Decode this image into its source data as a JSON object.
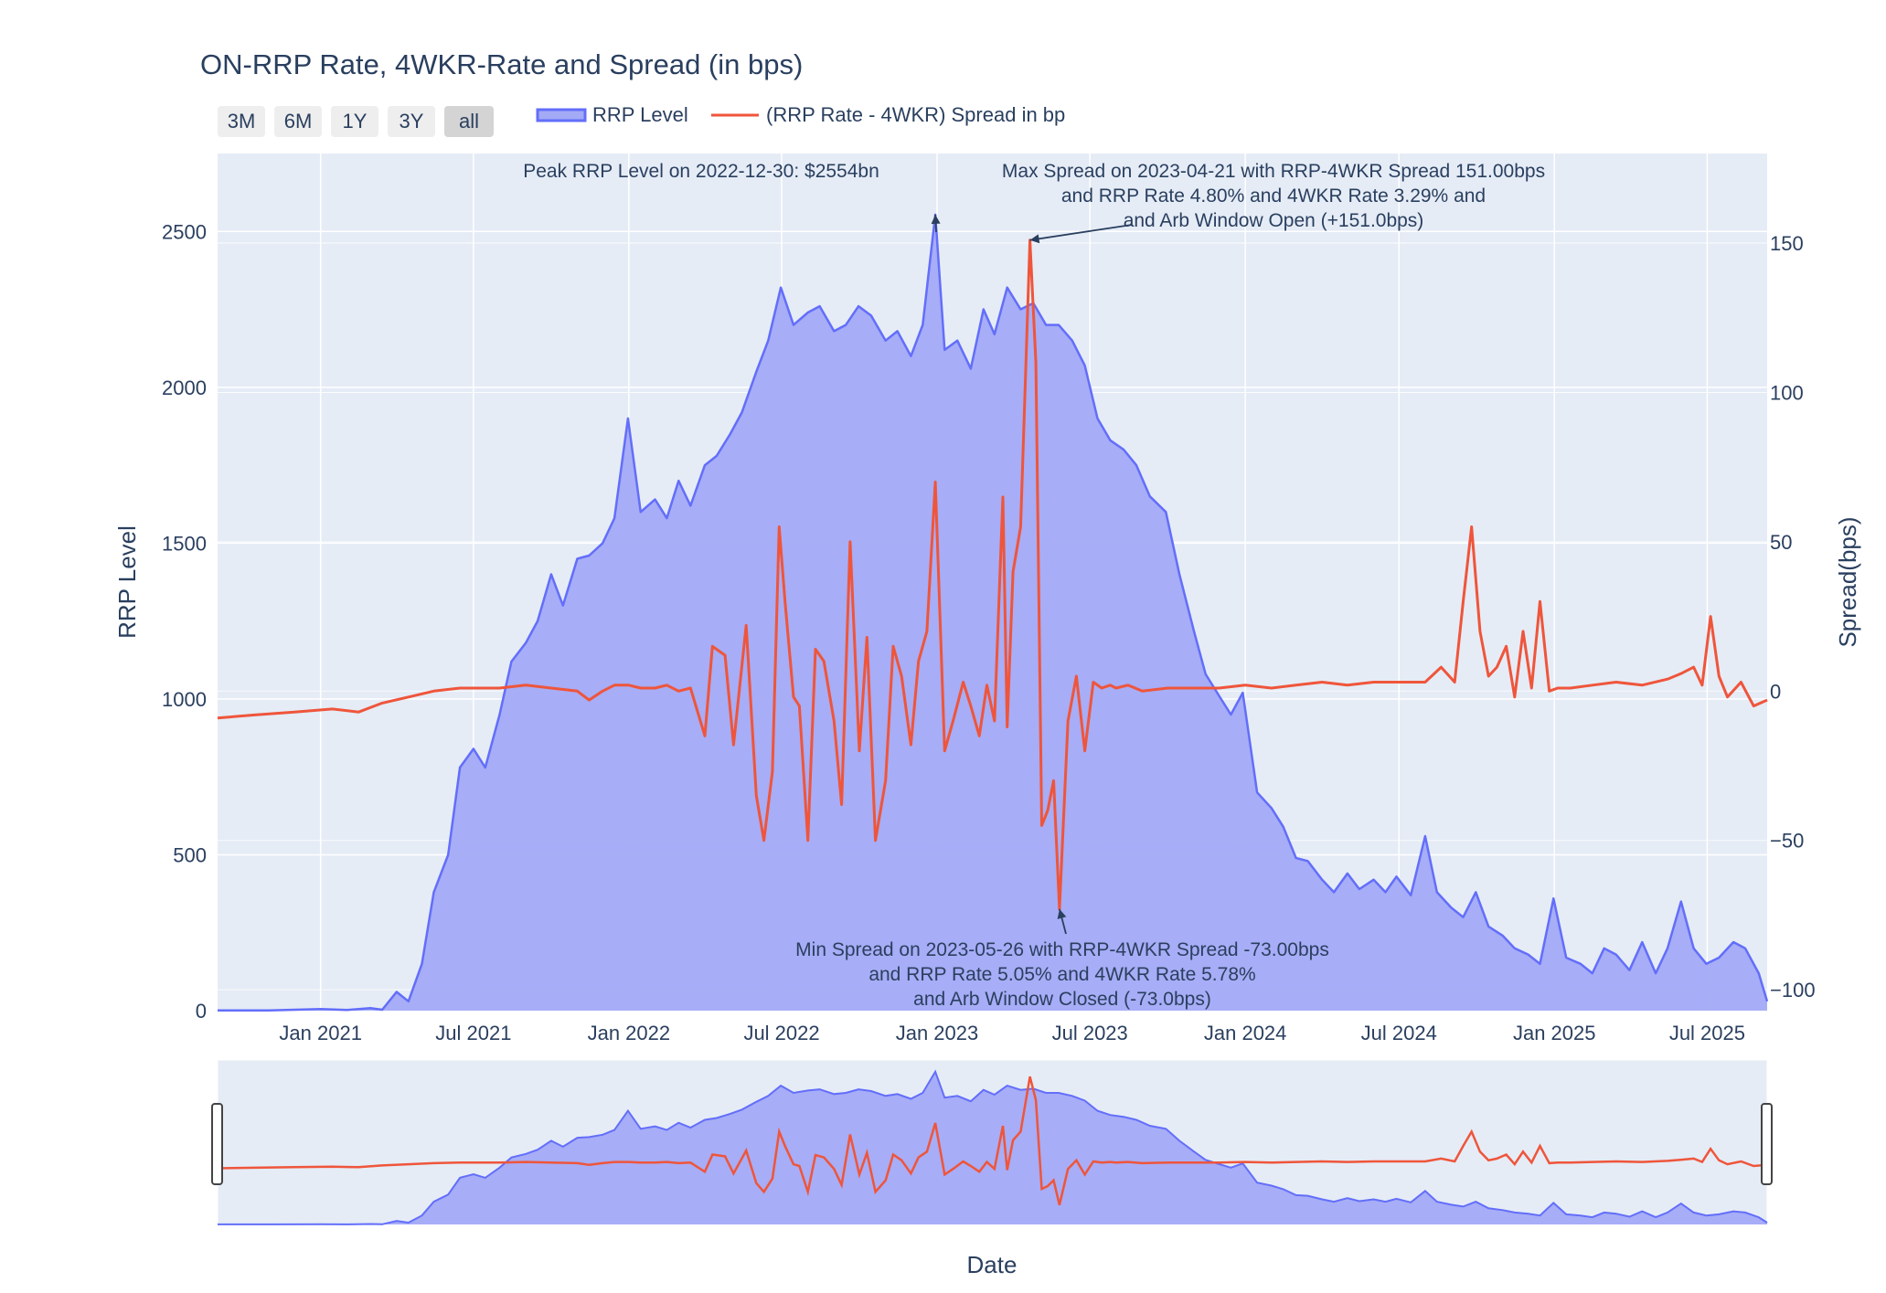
{
  "chart_data": {
    "type": "area+line",
    "title": "ON-RRP Rate, 4WKR-Rate and Spread (in bps)",
    "xlabel": "Date",
    "ylabel_left": "RRP Level",
    "ylabel_right": "Spread(bps)",
    "x_range": [
      "2020-09-01",
      "2025-09-10"
    ],
    "ylim_left": [
      0,
      2750
    ],
    "ylim_right": [
      -107,
      180
    ],
    "x_ticks": [
      "Jan 2021",
      "Jul 2021",
      "Jan 2022",
      "Jul 2022",
      "Jan 2023",
      "Jul 2023",
      "Jan 2024",
      "Jul 2024",
      "Jan 2025",
      "Jul 2025"
    ],
    "x_tick_dates": [
      "2021-01-01",
      "2021-07-01",
      "2022-01-01",
      "2022-07-01",
      "2023-01-01",
      "2023-07-01",
      "2024-01-01",
      "2024-07-01",
      "2025-01-01",
      "2025-07-01"
    ],
    "y_ticks_left": [
      0,
      500,
      1000,
      1500,
      2000,
      2500
    ],
    "y_ticks_right": [
      -100,
      -50,
      0,
      50,
      100,
      150
    ],
    "y_ticks_right_labels": [
      "−100",
      "−50",
      "0",
      "50",
      "100",
      "150"
    ],
    "grid": true,
    "legend_position": "top-left",
    "range_selector": [
      "3M",
      "6M",
      "1Y",
      "3Y",
      "all"
    ],
    "range_selector_active": "all",
    "range_slider": true,
    "colors": {
      "rrp_line": "#636efa",
      "rrp_fill": "#a3aaf6",
      "spread_line": "#ef553b",
      "plot_bg": "#e5ecf6",
      "grid": "#ffffff",
      "text": "#2a3f5f"
    },
    "series": [
      {
        "name": "RRP Level",
        "type": "area",
        "axis": "left",
        "x": [
          "2020-09-01",
          "2020-11-01",
          "2021-01-01",
          "2021-02-01",
          "2021-03-01",
          "2021-03-15",
          "2021-04-01",
          "2021-04-15",
          "2021-05-01",
          "2021-05-15",
          "2021-06-01",
          "2021-06-15",
          "2021-07-01",
          "2021-07-15",
          "2021-08-01",
          "2021-08-15",
          "2021-09-01",
          "2021-09-15",
          "2021-10-01",
          "2021-10-15",
          "2021-11-01",
          "2021-11-15",
          "2021-12-01",
          "2021-12-15",
          "2021-12-31",
          "2022-01-15",
          "2022-02-01",
          "2022-02-15",
          "2022-03-01",
          "2022-03-15",
          "2022-04-01",
          "2022-04-15",
          "2022-05-01",
          "2022-05-15",
          "2022-06-01",
          "2022-06-15",
          "2022-06-30",
          "2022-07-15",
          "2022-08-01",
          "2022-08-15",
          "2022-09-01",
          "2022-09-15",
          "2022-09-30",
          "2022-10-15",
          "2022-11-01",
          "2022-11-15",
          "2022-12-01",
          "2022-12-15",
          "2022-12-30",
          "2023-01-10",
          "2023-01-25",
          "2023-02-10",
          "2023-02-25",
          "2023-03-10",
          "2023-03-25",
          "2023-04-10",
          "2023-04-25",
          "2023-05-10",
          "2023-05-25",
          "2023-06-10",
          "2023-06-25",
          "2023-07-10",
          "2023-07-25",
          "2023-08-10",
          "2023-08-25",
          "2023-09-10",
          "2023-09-29",
          "2023-10-15",
          "2023-11-01",
          "2023-11-15",
          "2023-12-01",
          "2023-12-15",
          "2023-12-29",
          "2024-01-15",
          "2024-02-01",
          "2024-02-15",
          "2024-03-01",
          "2024-03-15",
          "2024-04-01",
          "2024-04-15",
          "2024-05-01",
          "2024-05-15",
          "2024-06-01",
          "2024-06-15",
          "2024-06-28",
          "2024-07-15",
          "2024-08-01",
          "2024-08-15",
          "2024-09-01",
          "2024-09-15",
          "2024-09-30",
          "2024-10-15",
          "2024-11-01",
          "2024-11-15",
          "2024-12-01",
          "2024-12-15",
          "2024-12-31",
          "2025-01-15",
          "2025-02-01",
          "2025-02-15",
          "2025-03-01",
          "2025-03-15",
          "2025-03-31",
          "2025-04-15",
          "2025-05-01",
          "2025-05-15",
          "2025-05-31",
          "2025-06-15",
          "2025-06-30",
          "2025-07-15",
          "2025-08-01",
          "2025-08-15",
          "2025-08-31",
          "2025-09-10"
        ],
        "values": [
          1,
          1,
          5,
          2,
          8,
          3,
          60,
          30,
          150,
          380,
          500,
          780,
          840,
          780,
          950,
          1120,
          1180,
          1250,
          1400,
          1300,
          1450,
          1460,
          1500,
          1580,
          1900,
          1600,
          1640,
          1580,
          1700,
          1620,
          1750,
          1780,
          1850,
          1920,
          2050,
          2150,
          2320,
          2200,
          2240,
          2260,
          2180,
          2200,
          2260,
          2230,
          2150,
          2180,
          2100,
          2200,
          2554,
          2120,
          2150,
          2060,
          2250,
          2170,
          2320,
          2250,
          2270,
          2200,
          2200,
          2150,
          2070,
          1900,
          1830,
          1800,
          1750,
          1650,
          1600,
          1400,
          1220,
          1080,
          1010,
          950,
          1020,
          700,
          650,
          590,
          490,
          480,
          420,
          380,
          440,
          390,
          420,
          380,
          430,
          370,
          560,
          380,
          330,
          300,
          380,
          270,
          240,
          200,
          180,
          150,
          360,
          170,
          150,
          120,
          200,
          180,
          130,
          220,
          120,
          200,
          350,
          200,
          150,
          170,
          220,
          200,
          120,
          30
        ]
      },
      {
        "name": "(RRP Rate - 4WKR) Spread in bp",
        "type": "line",
        "axis": "right",
        "x": [
          "2020-09-01",
          "2020-10-15",
          "2020-12-01",
          "2021-01-15",
          "2021-02-15",
          "2021-03-15",
          "2021-04-15",
          "2021-05-15",
          "2021-06-15",
          "2021-07-01",
          "2021-08-01",
          "2021-09-01",
          "2021-10-01",
          "2021-11-01",
          "2021-11-15",
          "2021-12-01",
          "2021-12-15",
          "2022-01-01",
          "2022-01-15",
          "2022-02-01",
          "2022-02-15",
          "2022-03-01",
          "2022-03-15",
          "2022-04-01",
          "2022-04-10",
          "2022-04-25",
          "2022-05-05",
          "2022-05-20",
          "2022-06-01",
          "2022-06-10",
          "2022-06-20",
          "2022-06-28",
          "2022-07-05",
          "2022-07-15",
          "2022-07-22",
          "2022-08-01",
          "2022-08-10",
          "2022-08-20",
          "2022-09-01",
          "2022-09-10",
          "2022-09-20",
          "2022-10-01",
          "2022-10-10",
          "2022-10-20",
          "2022-11-01",
          "2022-11-10",
          "2022-11-20",
          "2022-12-01",
          "2022-12-10",
          "2022-12-20",
          "2022-12-30",
          "2023-01-10",
          "2023-01-20",
          "2023-02-01",
          "2023-02-10",
          "2023-02-20",
          "2023-03-01",
          "2023-03-10",
          "2023-03-20",
          "2023-03-25",
          "2023-04-01",
          "2023-04-10",
          "2023-04-21",
          "2023-04-28",
          "2023-05-05",
          "2023-05-12",
          "2023-05-19",
          "2023-05-26",
          "2023-06-05",
          "2023-06-15",
          "2023-06-25",
          "2023-07-05",
          "2023-07-15",
          "2023-07-25",
          "2023-08-01",
          "2023-08-15",
          "2023-09-01",
          "2023-10-01",
          "2023-11-01",
          "2023-12-01",
          "2024-01-01",
          "2024-02-01",
          "2024-03-01",
          "2024-04-01",
          "2024-05-01",
          "2024-06-01",
          "2024-07-01",
          "2024-08-01",
          "2024-08-20",
          "2024-09-05",
          "2024-09-15",
          "2024-09-25",
          "2024-10-05",
          "2024-10-15",
          "2024-10-25",
          "2024-11-05",
          "2024-11-15",
          "2024-11-25",
          "2024-12-05",
          "2024-12-15",
          "2024-12-26",
          "2025-01-05",
          "2025-01-20",
          "2025-02-15",
          "2025-03-15",
          "2025-04-15",
          "2025-05-15",
          "2025-06-01",
          "2025-06-15",
          "2025-06-25",
          "2025-07-05",
          "2025-07-15",
          "2025-07-25",
          "2025-08-10",
          "2025-08-25",
          "2025-09-10"
        ],
        "values": [
          -9,
          -8,
          -7,
          -6,
          -7,
          -4,
          -2,
          0,
          1,
          1,
          1,
          2,
          1,
          0,
          -3,
          0,
          2,
          2,
          1,
          1,
          2,
          0,
          1,
          -15,
          15,
          12,
          -18,
          22,
          -35,
          -50,
          -27,
          55,
          30,
          -2,
          -5,
          -50,
          14,
          10,
          -10,
          -38,
          50,
          -20,
          18,
          -50,
          -30,
          15,
          5,
          -18,
          10,
          20,
          70,
          -20,
          -10,
          3,
          -5,
          -15,
          2,
          -10,
          65,
          -12,
          40,
          55,
          151,
          110,
          -45,
          -40,
          -30,
          -73,
          -10,
          5,
          -20,
          3,
          1,
          2,
          1,
          2,
          0,
          1,
          1,
          1,
          2,
          1,
          2,
          3,
          2,
          3,
          3,
          3,
          8,
          3,
          30,
          55,
          20,
          5,
          8,
          15,
          -2,
          20,
          1,
          30,
          0,
          1,
          1,
          2,
          3,
          2,
          4,
          6,
          8,
          2,
          25,
          5,
          -2,
          3,
          -5,
          -3
        ]
      }
    ],
    "annotations": [
      {
        "text_lines": [
          "Peak RRP Level on 2022-12-30: $2554bn"
        ],
        "point_date": "2022-12-30",
        "point_value": 2554,
        "axis": "left"
      },
      {
        "text_lines": [
          "Max Spread on 2023-04-21 with RRP-4WKR Spread 151.00bps",
          "and RRP Rate 4.80% and 4WKR Rate 3.29% and",
          "and Arb Window Open (+151.0bps)"
        ],
        "point_date": "2023-04-21",
        "point_value": 151,
        "axis": "right"
      },
      {
        "text_lines": [
          "Min Spread on 2023-05-26 with RRP-4WKR Spread -73.00bps",
          "and RRP Rate 5.05% and 4WKR Rate 5.78%",
          "and Arb Window Closed (-73.0bps)"
        ],
        "point_date": "2023-05-26",
        "point_value": -73,
        "axis": "right"
      }
    ]
  }
}
